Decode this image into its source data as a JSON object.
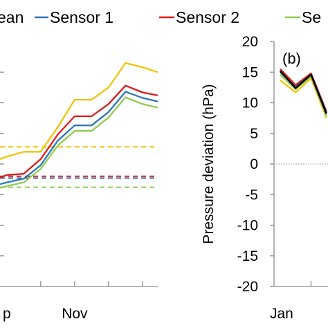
{
  "legend": [
    {
      "key": "mean",
      "label": "ean",
      "color": "#f2c300"
    },
    {
      "key": "s1",
      "label": "Sensor 1",
      "color": "#2e75b6"
    },
    {
      "key": "s2",
      "label": "Sensor 2",
      "color": "#e01818"
    },
    {
      "key": "s3",
      "label": "Se",
      "color": "#8fcc4d"
    }
  ],
  "chart_data": [
    {
      "type": "line",
      "panel": "a",
      "title": "",
      "xlabel": "",
      "ylabel": "",
      "x_ticks": [
        {
          "label": "p",
          "x": 0
        },
        {
          "label": "Nov",
          "x": 2
        }
      ],
      "x_divisions": [
        1,
        2,
        3,
        4
      ],
      "xlim": [
        -0.2,
        4.45
      ],
      "ylim": [
        -20,
        20
      ],
      "grid": false,
      "series": [
        {
          "key": "mean",
          "color": "#f2c300",
          "x": [
            -0.2,
            0.0,
            0.5,
            1.0,
            1.5,
            2.0,
            2.5,
            3.0,
            3.5,
            4.0,
            4.45
          ],
          "y": [
            0.8,
            1.2,
            2.0,
            2.0,
            6.0,
            10.5,
            10.5,
            12.5,
            16.5,
            15.8,
            15.0
          ]
        },
        {
          "key": "s2",
          "color": "#e01818",
          "x": [
            -0.2,
            0.0,
            0.5,
            1.0,
            1.5,
            2.0,
            2.5,
            3.0,
            3.5,
            4.0,
            4.45
          ],
          "y": [
            -2.2,
            -1.8,
            -1.6,
            0.8,
            4.8,
            7.8,
            7.8,
            9.8,
            12.8,
            11.7,
            11.2
          ]
        },
        {
          "key": "s1",
          "color": "#2e75b6",
          "x": [
            -0.2,
            0.0,
            0.5,
            1.0,
            1.5,
            2.0,
            2.5,
            3.0,
            3.5,
            4.0,
            4.45
          ],
          "y": [
            -3.3,
            -3.0,
            -2.4,
            -0.2,
            3.8,
            6.3,
            6.3,
            8.5,
            11.8,
            10.8,
            10.2
          ]
        },
        {
          "key": "s3",
          "color": "#8fcc4d",
          "x": [
            -0.2,
            0.0,
            0.5,
            1.0,
            1.5,
            2.0,
            2.5,
            3.0,
            3.5,
            4.0,
            4.45
          ],
          "y": [
            -3.9,
            -3.6,
            -3.0,
            -0.8,
            3.0,
            5.4,
            5.4,
            7.6,
            10.9,
            9.8,
            9.2
          ]
        }
      ],
      "reference_lines": [
        {
          "key": "mean",
          "color": "#f2c300",
          "y": 2.8
        },
        {
          "key": "s2",
          "color": "#e01818",
          "y": -2.0
        },
        {
          "key": "s1",
          "color": "#2e75b6",
          "y": -2.3
        },
        {
          "key": "s3",
          "color": "#8fcc4d",
          "y": -3.8
        }
      ]
    },
    {
      "type": "line",
      "panel": "b",
      "panel_label": "(b)",
      "title": "",
      "xlabel": "",
      "ylabel": "Pressure deviation (hPa)",
      "x_ticks": [
        {
          "label": "Jan",
          "x": 0
        }
      ],
      "x_divisions": [
        1
      ],
      "xlim": [
        -0.2,
        1.55
      ],
      "ylim": [
        -20,
        20
      ],
      "y_ticks": [
        20,
        15,
        10,
        5,
        0,
        -5,
        -10,
        -15,
        -20
      ],
      "zero_line": true,
      "grid": false,
      "series": [
        {
          "key": "mean",
          "color": "#f2c300",
          "x": [
            0.0,
            0.5,
            1.0,
            1.5
          ],
          "y": [
            13.7,
            11.7,
            14.0,
            7.5
          ]
        },
        {
          "key": "s2",
          "color": "#e01818",
          "x": [
            0.0,
            0.5,
            1.0,
            1.5
          ],
          "y": [
            15.5,
            12.9,
            14.8,
            8.6
          ]
        },
        {
          "key": "s1",
          "color": "#2e75b6",
          "x": [
            0.0,
            0.5,
            1.0,
            1.5
          ],
          "y": [
            15.0,
            12.6,
            14.6,
            8.4
          ]
        },
        {
          "key": "s3",
          "color": "#8fcc4d",
          "x": [
            0.0,
            0.5,
            1.0,
            1.5
          ],
          "y": [
            14.6,
            12.2,
            14.3,
            7.8
          ]
        },
        {
          "key": "obs",
          "color": "#000000",
          "x": [
            0.0,
            0.5,
            1.0,
            1.5
          ],
          "y": [
            15.2,
            12.4,
            14.6,
            8.2
          ]
        }
      ]
    }
  ]
}
